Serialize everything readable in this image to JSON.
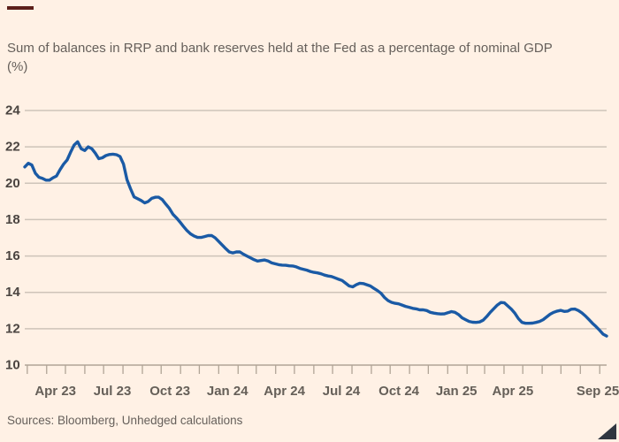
{
  "page": {
    "background": "#FFF1E5"
  },
  "branding": {
    "top_bar_color": "#5c1f1a",
    "corner_triangle_color": "#2f3540"
  },
  "header": {
    "title_line1": "Sum of balances in RRP and bank reserves held at the Fed as a percentage of nominal GDP",
    "title_line2": "(%)",
    "title_color": "#66605b"
  },
  "footer": {
    "sources": "Sources: Bloomberg, Unhedged calculations",
    "color": "#66605b"
  },
  "chart_data": {
    "type": "line",
    "title": "Sum of balances in RRP and bank reserves held at the Fed as a percentage of nominal GDP (%)",
    "xlabel": "",
    "ylabel": "%",
    "ylim": [
      10,
      24
    ],
    "y_ticks": [
      10,
      12,
      14,
      16,
      18,
      20,
      22,
      24
    ],
    "x_tick_labels": [
      "Apr 23",
      "Jul 23",
      "Oct 23",
      "Jan 24",
      "Apr 24",
      "Jul 24",
      "Oct 24",
      "Jan 25",
      "Apr 25",
      "Sep 25"
    ],
    "x_range": {
      "start": "2023-02-25",
      "end": "2025-09-12"
    },
    "x_minor_ticks": "monthly",
    "grid": "horizontal",
    "legend": "none",
    "colors": {
      "line": "#1a5aa5",
      "grid": "#cec4b9",
      "axis": "#b0a496",
      "y_tick_label": "#4a4440",
      "x_tick_label": "#655f58"
    },
    "series": [
      {
        "name": "RRP + bank reserves as % of nominal GDP",
        "sampling": "uniform between x_range.start and x_range.end",
        "values": [
          20.9,
          21.1,
          21.0,
          20.55,
          20.33,
          20.27,
          20.17,
          20.17,
          20.3,
          20.4,
          20.75,
          21.05,
          21.28,
          21.7,
          22.1,
          22.28,
          21.9,
          21.8,
          22.0,
          21.9,
          21.65,
          21.35,
          21.4,
          21.52,
          21.58,
          21.6,
          21.57,
          21.47,
          21.05,
          20.2,
          19.7,
          19.25,
          19.15,
          19.05,
          18.92,
          19.0,
          19.17,
          19.23,
          19.23,
          19.1,
          18.85,
          18.62,
          18.3,
          18.1,
          17.87,
          17.62,
          17.4,
          17.22,
          17.1,
          17.02,
          17.02,
          17.07,
          17.12,
          17.12,
          17.0,
          16.8,
          16.6,
          16.4,
          16.22,
          16.17,
          16.22,
          16.22,
          16.1,
          16.0,
          15.9,
          15.8,
          15.72,
          15.75,
          15.78,
          15.72,
          15.62,
          15.57,
          15.52,
          15.5,
          15.49,
          15.46,
          15.45,
          15.4,
          15.32,
          15.27,
          15.22,
          15.15,
          15.1,
          15.07,
          15.02,
          14.95,
          14.9,
          14.87,
          14.8,
          14.72,
          14.65,
          14.5,
          14.35,
          14.3,
          14.42,
          14.5,
          14.48,
          14.42,
          14.35,
          14.22,
          14.1,
          13.95,
          13.72,
          13.55,
          13.45,
          13.4,
          13.37,
          13.3,
          13.23,
          13.18,
          13.12,
          13.09,
          13.04,
          13.04,
          13.0,
          12.9,
          12.86,
          12.83,
          12.81,
          12.82,
          12.88,
          12.94,
          12.9,
          12.78,
          12.6,
          12.5,
          12.4,
          12.36,
          12.35,
          12.37,
          12.47,
          12.67,
          12.9,
          13.1,
          13.3,
          13.44,
          13.42,
          13.25,
          13.07,
          12.85,
          12.55,
          12.35,
          12.3,
          12.3,
          12.31,
          12.35,
          12.4,
          12.5,
          12.65,
          12.8,
          12.9,
          12.97,
          13.01,
          12.95,
          12.97,
          13.07,
          13.08,
          13.0,
          12.87,
          12.7,
          12.5,
          12.3,
          12.12,
          11.92,
          11.7,
          11.6
        ]
      }
    ]
  }
}
